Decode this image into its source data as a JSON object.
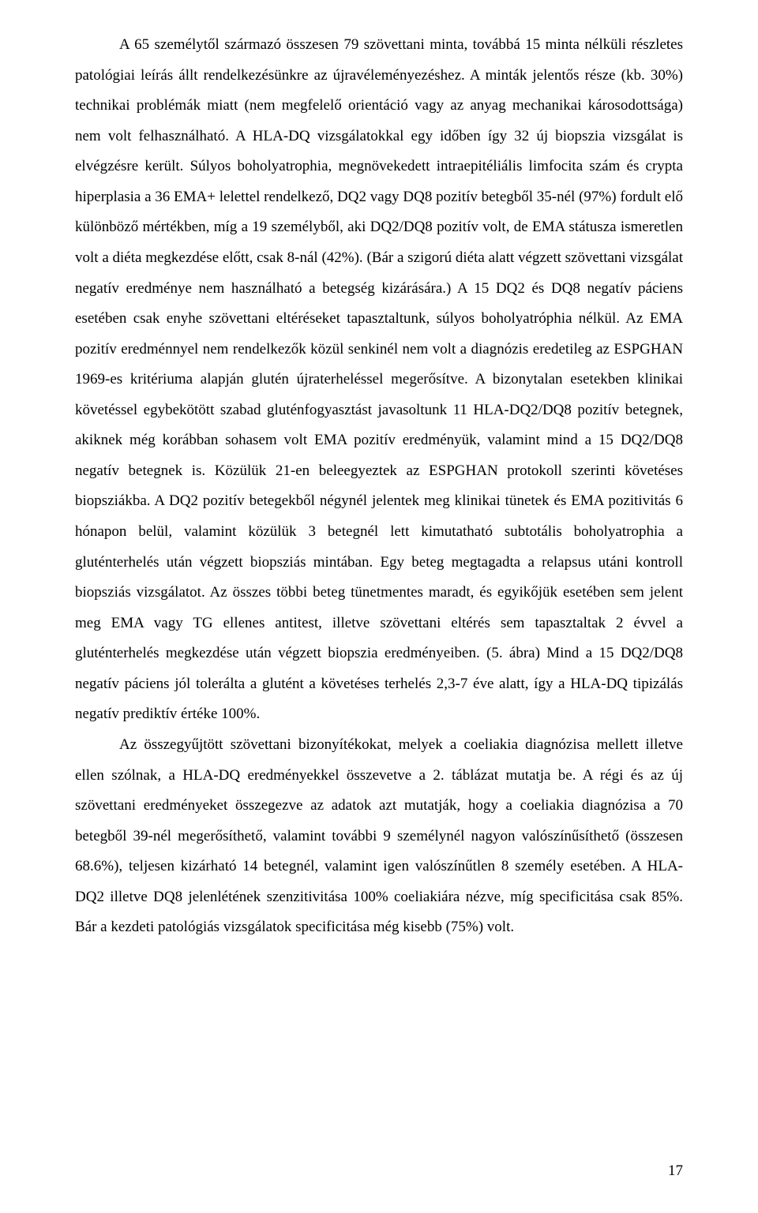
{
  "paragraphs": {
    "p1": "A 65 személytől származó összesen 79 szövettani minta, továbbá 15 minta nélküli részletes patológiai leírás állt rendelkezésünkre az újravéleményezéshez. A minták jelentős része (kb. 30%) technikai problémák miatt (nem megfelelő orientáció vagy az anyag mechanikai károsodottsága) nem volt felhasználható. A HLA-DQ vizsgálatokkal egy időben így 32 új biopszia vizsgálat is elvégzésre került. Súlyos boholyatrophia, megnövekedett intraepitéliális limfocita szám és crypta hiperplasia a 36 EMA+ lelettel rendelkező, DQ2 vagy DQ8 pozitív betegből 35-nél (97%) fordult elő különböző mértékben, míg a 19 személyből, aki DQ2/DQ8 pozitív volt, de EMA státusza ismeretlen volt a diéta megkezdése előtt, csak 8-nál (42%). (Bár a szigorú diéta alatt végzett szövettani vizsgálat negatív eredménye nem használható a betegség kizárására.) A 15 DQ2 és DQ8 negatív páciens esetében csak enyhe szövettani eltéréseket tapasztaltunk, súlyos boholyatróphia nélkül. Az EMA pozitív eredménnyel nem rendelkezők közül senkinél nem volt a diagnózis eredetileg az ESPGHAN 1969-es kritériuma alapján glutén újraterheléssel megerősítve. A bizonytalan esetekben klinikai követéssel egybekötött szabad gluténfogyasztást javasoltunk 11 HLA-DQ2/DQ8 pozitív betegnek, akiknek még korábban sohasem volt EMA pozitív eredményük, valamint mind a 15 DQ2/DQ8 negatív betegnek is. Közülük 21-en beleegyeztek az ESPGHAN protokoll szerinti követéses biopsziákba. A DQ2 pozitív betegekből négynél jelentek meg klinikai tünetek és EMA pozitivitás 6 hónapon belül, valamint közülük 3 betegnél lett kimutatható subtotális boholyatrophia a gluténterhelés után végzett biopsziás mintában. Egy beteg megtagadta a relapsus utáni kontroll biopsziás vizsgálatot. Az összes többi beteg tünetmentes maradt, és egyikőjük esetében sem jelent meg EMA vagy TG ellenes antitest, illetve szövettani eltérés sem tapasztaltak 2 évvel a gluténterhelés megkezdése után végzett biopszia eredményeiben. (5. ábra) Mind a 15 DQ2/DQ8 negatív páciens jól tolerálta a glutént a követéses terhelés 2,3-7 éve alatt, így a HLA-DQ tipizálás negatív prediktív értéke 100%.",
    "p2": "Az összegyűjtött szövettani bizonyítékokat, melyek a coeliakia diagnózisa mellett illetve ellen szólnak, a HLA-DQ eredményekkel összevetve a 2. táblázat mutatja be. A régi és az új szövettani eredményeket összegezve az adatok azt mutatják, hogy a coeliakia diagnózisa a 70 betegből 39-nél megerősíthető, valamint további 9 személynél nagyon valószínűsíthető (összesen 68.6%), teljesen kizárható 14 betegnél, valamint igen valószínűtlen 8 személy esetében. A HLA-DQ2 illetve DQ8 jelenlétének szenzitivitása 100% coeliakiára nézve, míg specificitása csak 85%. Bár a kezdeti patológiás vizsgálatok specificitása még kisebb (75%) volt."
  },
  "pageNumber": "17"
}
